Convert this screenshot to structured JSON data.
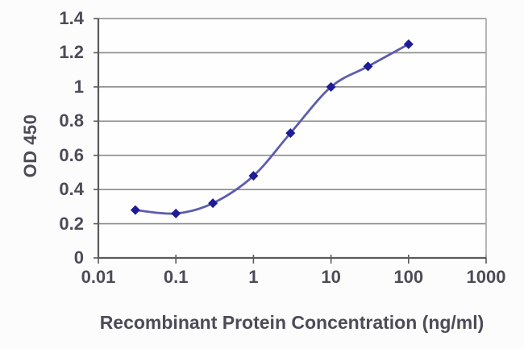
{
  "chart_data": {
    "type": "line",
    "title": "",
    "xlabel": "Recombinant Protein Concentration (ng/ml)",
    "ylabel": "OD 450",
    "x_scale": "log",
    "y_scale": "linear",
    "xlim": [
      0.01,
      1000
    ],
    "ylim": [
      0,
      1.4
    ],
    "x_ticks": [
      "0.01",
      "0.1",
      "1",
      "10",
      "100",
      "1000"
    ],
    "y_ticks": [
      "0",
      "0.2",
      "0.4",
      "0.6",
      "0.8",
      "1",
      "1.2",
      "1.4"
    ],
    "grid": "horizontal",
    "legend": "none",
    "series": [
      {
        "name": "OD 450",
        "marker": "diamond",
        "line_style": "smooth",
        "x": [
          0.03,
          0.1,
          0.3,
          1,
          3,
          10,
          30,
          100
        ],
        "y": [
          0.28,
          0.26,
          0.32,
          0.48,
          0.73,
          1.0,
          1.12,
          1.25
        ]
      }
    ]
  },
  "colors": {
    "text": "#4c4c58",
    "grid": "#8a8a8a",
    "axis": "#5a5a5a",
    "right_border": "#a3a3a3",
    "line": "#5c5cae",
    "marker": "#1c1c96",
    "background": "#fcfcfc",
    "plot_background": "#fefefe"
  }
}
